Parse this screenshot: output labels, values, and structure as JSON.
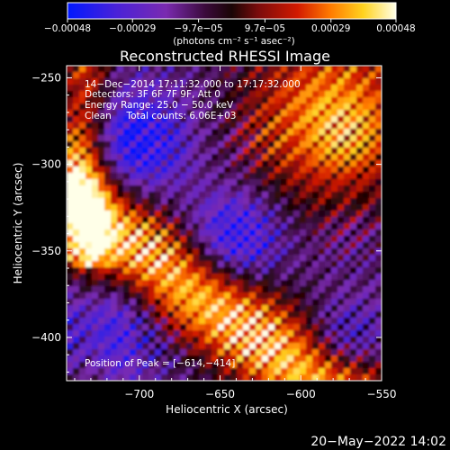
{
  "chart_data": {
    "type": "heatmap",
    "title": "Reconstructed RHESSI Image",
    "xlabel": "Heliocentric X (arcsec)",
    "ylabel": "Heliocentric Y (arcsec)",
    "xlim": [
      -745,
      -550
    ],
    "ylim": [
      -425,
      -243
    ],
    "x_ticks": [
      -700,
      -650,
      -600,
      -550
    ],
    "y_ticks": [
      -250,
      -300,
      -350,
      -400
    ],
    "x_tick_labels": [
      "−700",
      "−650",
      "−600",
      "−550"
    ],
    "y_tick_labels": [
      "−250",
      "−300",
      "−350",
      "−400"
    ],
    "colorbar": {
      "range": [
        -0.00048,
        0.00048
      ],
      "ticks": [
        -0.00048,
        -0.00029,
        -9.7e-05,
        9.7e-05,
        0.00029,
        0.00048
      ],
      "tick_labels": [
        "−0.00048",
        "−0.00029",
        "−9.7e−05",
        "9.7e−05",
        "0.00029",
        "0.00048"
      ],
      "unit_label": "(photons cm⁻² s⁻¹ asec⁻²)"
    },
    "annotations": {
      "time": "14−Dec−2014 17:11:32.000 to 17:17:32.000",
      "detectors": "Detectors: 3F 6F 7F 9F, Att 0",
      "energy": "Energy Range: 25.0 − 50.0 keV",
      "clean": "Clean     Total counts: 6.06E+03",
      "peak": "Position of Peak = [−614,−414]"
    },
    "peak_position": [
      -614,
      -414
    ],
    "grid": false
  },
  "footer": {
    "date": "20−May−2022 14:02"
  },
  "colors": {
    "background": "#000000",
    "text": "#ffffff"
  }
}
